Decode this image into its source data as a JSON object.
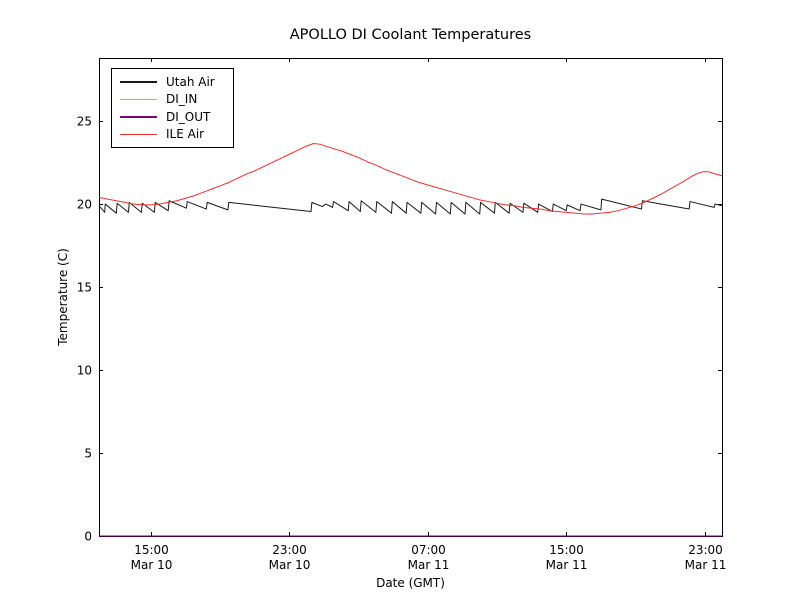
{
  "figure": {
    "background_color": "#ffffff",
    "spine_color": "#000000",
    "text_color": "#000000"
  },
  "chart_data": {
    "type": "line",
    "title": "APOLLO DI Coolant Temperatures",
    "xlabel": "Date (GMT)",
    "ylabel": "Temperature (C)",
    "x_unit_note": "hours after Mar 10 12:00 GMT",
    "xlim": [
      0,
      36
    ],
    "ylim": [
      0,
      28.8
    ],
    "grid": false,
    "legend_position": "upper left",
    "yticks": {
      "values": [
        0,
        5,
        10,
        15,
        20,
        25
      ],
      "labels": [
        "0",
        "5",
        "10",
        "15",
        "20",
        "25"
      ]
    },
    "xticks": {
      "values": [
        3,
        11,
        19,
        27,
        35
      ],
      "labels": [
        [
          "15:00",
          "Mar 10"
        ],
        [
          "23:00",
          "Mar 10"
        ],
        [
          "07:00",
          "Mar 11"
        ],
        [
          "15:00",
          "Mar 11"
        ],
        [
          "23:00",
          "Mar 11"
        ]
      ]
    },
    "series": [
      {
        "name": "Utah Air",
        "color": "#1a1a1a",
        "x": [
          0,
          0.33,
          0.36,
          1.0,
          1.05,
          1.7,
          1.75,
          2.45,
          2.5,
          3.2,
          3.25,
          4.0,
          4.05,
          5.05,
          5.1,
          6.2,
          6.25,
          7.45,
          7.5,
          12.25,
          12.3,
          12.9,
          13.1,
          13.5,
          13.55,
          14.4,
          14.45,
          15.1,
          15.15,
          16.0,
          16.05,
          16.9,
          16.95,
          17.75,
          17.8,
          18.6,
          18.65,
          19.45,
          19.5,
          20.3,
          20.35,
          21.15,
          21.2,
          22.0,
          22.05,
          22.85,
          22.9,
          23.7,
          23.75,
          24.5,
          24.55,
          25.35,
          25.4,
          26.2,
          26.25,
          27.0,
          27.05,
          27.8,
          27.85,
          29.0,
          29.05,
          31.35,
          31.4,
          34.1,
          34.15,
          35.55,
          35.6,
          36.0
        ],
        "y": [
          19.9,
          19.5,
          20.0,
          19.45,
          20.05,
          19.5,
          20.1,
          19.5,
          20.05,
          19.5,
          20.1,
          19.6,
          20.2,
          19.75,
          20.15,
          19.7,
          20.1,
          19.65,
          20.1,
          19.55,
          20.1,
          19.85,
          20.0,
          19.8,
          20.15,
          19.6,
          20.15,
          19.55,
          20.2,
          19.5,
          20.15,
          19.45,
          20.15,
          19.45,
          20.1,
          19.45,
          20.1,
          19.4,
          20.1,
          19.4,
          20.1,
          19.4,
          20.1,
          19.4,
          20.1,
          19.45,
          20.1,
          19.45,
          20.05,
          19.5,
          20.05,
          19.5,
          20.0,
          19.55,
          20.0,
          19.6,
          19.95,
          19.6,
          20.0,
          19.65,
          20.3,
          19.7,
          20.2,
          19.7,
          20.15,
          19.8,
          20.0,
          19.9
        ]
      },
      {
        "name": "DI_IN",
        "color": "#ffa500",
        "x": [
          0,
          36
        ],
        "y": [
          0,
          0
        ]
      },
      {
        "name": "DI_OUT",
        "color": "#800080",
        "x": [
          0,
          36
        ],
        "y": [
          0,
          0
        ]
      },
      {
        "name": "ILE Air",
        "color": "#ee3030",
        "x": [
          0,
          0.5,
          1,
          1.5,
          2,
          2.5,
          3,
          3.5,
          4,
          4.5,
          5,
          5.5,
          6,
          6.5,
          7,
          7.5,
          8,
          8.5,
          9,
          9.5,
          10,
          10.5,
          11,
          11.5,
          12,
          12.4,
          12.8,
          13.2,
          14,
          14.5,
          15,
          15.5,
          16,
          16.5,
          17,
          17.5,
          18,
          18.5,
          19,
          19.5,
          20,
          20.5,
          21,
          21.5,
          22,
          22.5,
          23,
          23.5,
          24,
          24.5,
          25,
          25.5,
          26,
          26.5,
          27,
          27.5,
          28,
          28.5,
          29,
          29.5,
          30,
          30.5,
          31,
          31.5,
          32,
          32.5,
          33,
          33.5,
          34,
          34.3,
          34.6,
          34.9,
          35.2,
          35.5,
          36
        ],
        "y": [
          20.4,
          20.3,
          20.2,
          20.1,
          20.0,
          19.95,
          19.95,
          20.0,
          20.1,
          20.2,
          20.35,
          20.5,
          20.7,
          20.9,
          21.1,
          21.3,
          21.55,
          21.8,
          22.0,
          22.25,
          22.5,
          22.75,
          23.0,
          23.25,
          23.5,
          23.65,
          23.6,
          23.45,
          23.2,
          23.0,
          22.8,
          22.55,
          22.35,
          22.1,
          21.9,
          21.7,
          21.5,
          21.3,
          21.15,
          21.0,
          20.85,
          20.7,
          20.55,
          20.4,
          20.25,
          20.15,
          20.05,
          19.95,
          19.9,
          19.8,
          19.75,
          19.7,
          19.6,
          19.55,
          19.5,
          19.45,
          19.4,
          19.4,
          19.45,
          19.5,
          19.6,
          19.75,
          19.9,
          20.1,
          20.35,
          20.6,
          20.9,
          21.2,
          21.5,
          21.7,
          21.85,
          21.95,
          21.95,
          21.85,
          21.7
        ]
      }
    ]
  }
}
